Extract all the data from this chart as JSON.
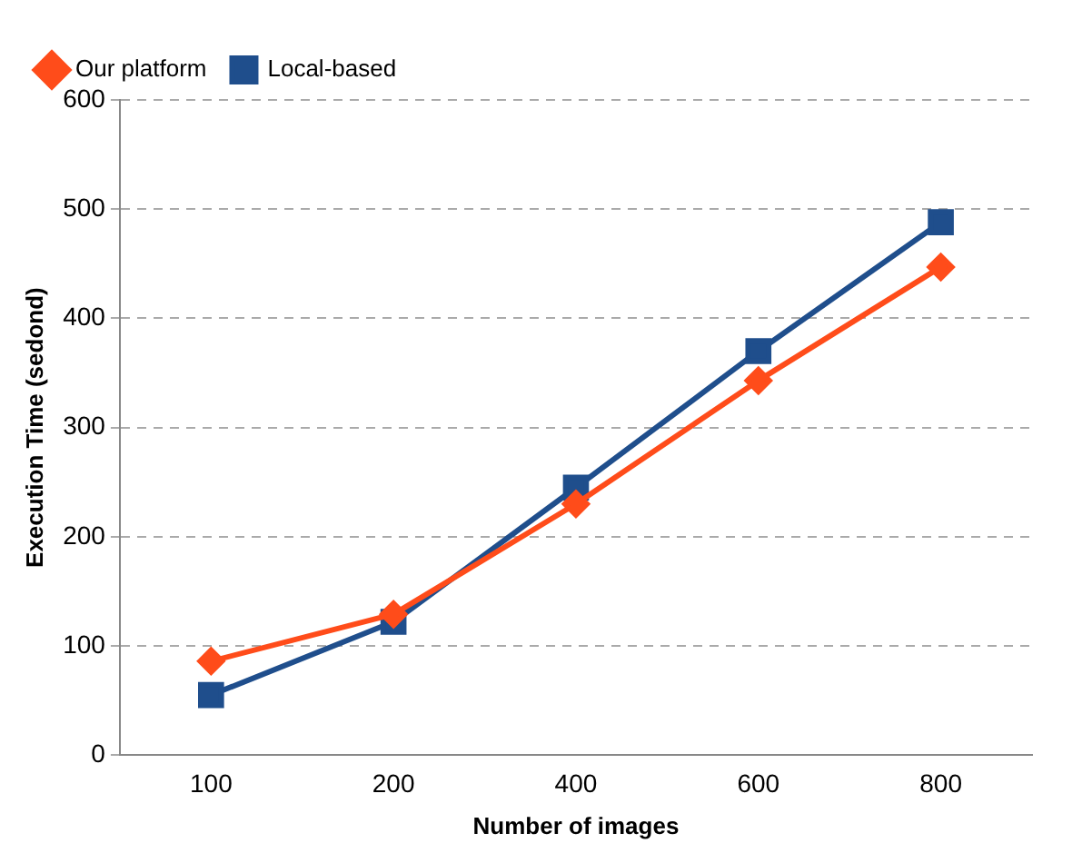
{
  "chart_data": {
    "type": "line",
    "xlabel": "Number of images",
    "ylabel": "Execution Time (sedond)",
    "categories": [
      "100",
      "200",
      "400",
      "600",
      "800"
    ],
    "series": [
      {
        "name": "Local-based",
        "color": "#1f4e8c",
        "values": [
          55,
          122,
          245,
          370,
          488
        ],
        "marker": "square"
      },
      {
        "name": "Our platform",
        "color": "#ff4c1a",
        "values": [
          86,
          129,
          230,
          343,
          447
        ],
        "marker": "diamond"
      }
    ],
    "ylim": [
      0,
      600
    ],
    "yticks": [
      0,
      100,
      200,
      300,
      400,
      500,
      600
    ],
    "grid": "y",
    "legend": "top left",
    "line_style": "solid"
  }
}
